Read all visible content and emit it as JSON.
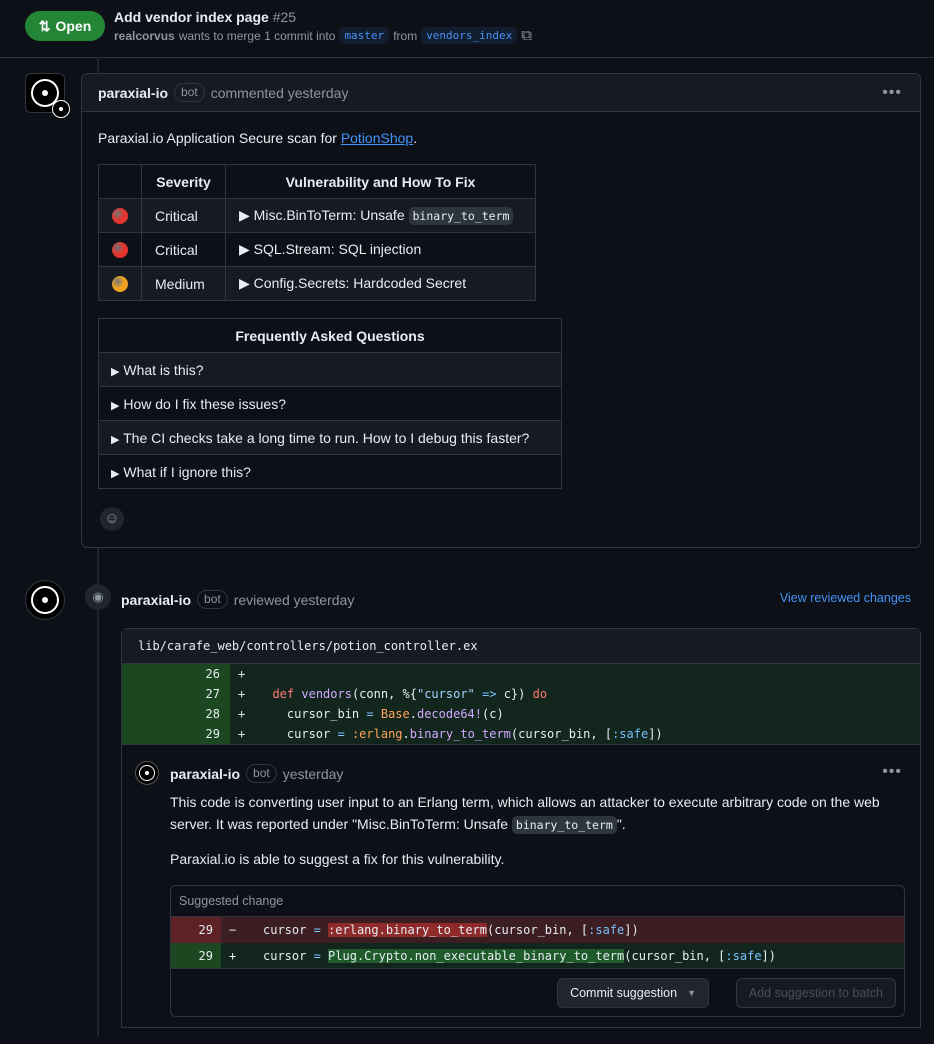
{
  "pr": {
    "status": "Open",
    "title": "Add vendor index page",
    "number": "#25",
    "author": "realcorvus",
    "merge_text": "wants to merge 1 commit into",
    "base": "master",
    "from": "from",
    "head": "vendors_index"
  },
  "comment": {
    "author": "paraxial-io",
    "bot": "bot",
    "action": "commented yesterday",
    "intro": "Paraxial.io Application Secure scan for ",
    "link": "PotionShop",
    "period": ".",
    "table": {
      "headers": [
        "",
        "Severity",
        "Vulnerability and How To Fix"
      ],
      "rows": [
        {
          "color": "#e5342b",
          "severity": "Critical",
          "vuln": "Misc.BinToTerm: Unsafe ",
          "code": "binary_to_term"
        },
        {
          "color": "#e5342b",
          "severity": "Critical",
          "vuln": "SQL.Stream: SQL injection",
          "code": ""
        },
        {
          "color": "#f0a020",
          "severity": "Medium",
          "vuln": "Config.Secrets: Hardcoded Secret",
          "code": ""
        }
      ]
    },
    "faq": {
      "header": "Frequently Asked Questions",
      "items": [
        "What is this?",
        "How do I fix these issues?",
        "The CI checks take a long time to run. How to I debug this faster?",
        "What if I ignore this?"
      ]
    }
  },
  "review": {
    "author": "paraxial-io",
    "bot": "bot",
    "action": "reviewed yesterday",
    "view_link": "View reviewed changes",
    "file": "lib/carafe_web/controllers/potion_controller.ex",
    "lines": [
      {
        "n": "26",
        "code": ""
      },
      {
        "n": "27",
        "code": "def vendors(conn, %{\"cursor\" => c}) do"
      },
      {
        "n": "28",
        "code": "cursor_bin = Base.decode64!(c)"
      },
      {
        "n": "29",
        "code": "cursor = :erlang.binary_to_term(cursor_bin, [:safe])"
      }
    ],
    "reply": {
      "author": "paraxial-io",
      "bot": "bot",
      "time": "yesterday",
      "p1a": "This code is converting user input to an Erlang term, which allows an attacker to execute arbitrary code on the web server. It was reported under \"Misc.BinToTerm: Unsafe ",
      "p1code": "binary_to_term",
      "p1b": "\".",
      "p2": "Paraxial.io is able to suggest a fix for this vulnerability.",
      "suggestion": {
        "header": "Suggested change",
        "del_n": "29",
        "add_n": "29",
        "commit": "Commit suggestion",
        "batch": "Add suggestion to batch"
      }
    }
  }
}
